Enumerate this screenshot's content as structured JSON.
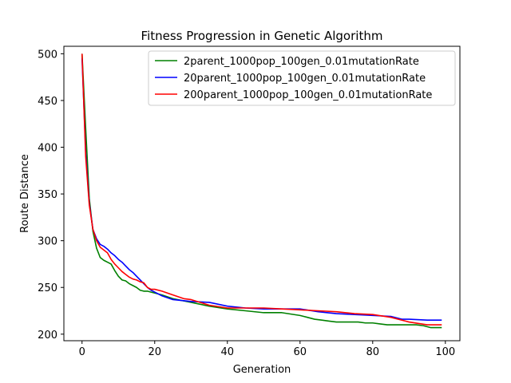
{
  "chart_data": {
    "type": "line",
    "title": "Fitness Progression in Genetic Algorithm",
    "xlabel": "Generation",
    "ylabel": "Route Distance",
    "xlim": [
      -5,
      104
    ],
    "ylim": [
      193,
      508
    ],
    "xticks": [
      0,
      20,
      40,
      60,
      80,
      100
    ],
    "yticks": [
      200,
      250,
      300,
      350,
      400,
      450,
      500
    ],
    "grid": false,
    "legend_position": "top-right",
    "series": [
      {
        "name": "2parent_1000pop_100gen_0.01mutationRate",
        "color": "#008000",
        "x": [
          0,
          1,
          2,
          3,
          4,
          5,
          6,
          7,
          8,
          9,
          10,
          11,
          12,
          13,
          14,
          15,
          16,
          17,
          18,
          19,
          20,
          22,
          25,
          30,
          35,
          40,
          45,
          50,
          55,
          60,
          62,
          64,
          66,
          68,
          70,
          72,
          74,
          76,
          78,
          80,
          82,
          84,
          86,
          88,
          90,
          92,
          94,
          96,
          98,
          99
        ],
        "y": [
          500,
          420,
          345,
          310,
          292,
          282,
          279,
          277,
          275,
          268,
          262,
          258,
          257,
          254,
          252,
          250,
          247,
          246,
          246,
          245,
          244,
          242,
          238,
          234,
          230,
          227,
          225,
          223,
          223,
          220,
          218,
          216,
          215,
          214,
          213,
          213,
          213,
          213,
          212,
          212,
          211,
          210,
          210,
          210,
          210,
          210,
          209,
          207,
          207,
          207
        ]
      },
      {
        "name": "20parent_1000pop_100gen_0.01mutationRate",
        "color": "#0000ff",
        "x": [
          0,
          1,
          2,
          3,
          4,
          5,
          6,
          7,
          8,
          9,
          10,
          11,
          12,
          13,
          14,
          15,
          16,
          17,
          18,
          19,
          20,
          22,
          25,
          30,
          35,
          40,
          45,
          50,
          55,
          60,
          65,
          70,
          75,
          80,
          85,
          88,
          90,
          95,
          99
        ],
        "y": [
          495,
          395,
          340,
          312,
          302,
          296,
          294,
          291,
          287,
          284,
          280,
          277,
          273,
          269,
          266,
          262,
          258,
          254,
          250,
          247,
          245,
          241,
          237,
          235,
          234,
          230,
          228,
          227,
          227,
          227,
          224,
          222,
          221,
          220,
          219,
          216,
          216,
          215,
          215
        ]
      },
      {
        "name": "200parent_1000pop_100gen_0.01mutationRate",
        "color": "#ff0000",
        "x": [
          0,
          1,
          2,
          3,
          4,
          5,
          6,
          7,
          8,
          9,
          10,
          11,
          12,
          13,
          14,
          15,
          16,
          17,
          18,
          19,
          20,
          22,
          25,
          28,
          30,
          35,
          40,
          45,
          50,
          55,
          60,
          65,
          70,
          75,
          80,
          85,
          90,
          95,
          99
        ],
        "y": [
          500,
          390,
          338,
          312,
          300,
          293,
          290,
          287,
          280,
          275,
          271,
          267,
          264,
          261,
          259,
          258,
          256,
          255,
          250,
          248,
          248,
          246,
          242,
          238,
          237,
          231,
          228,
          228,
          228,
          227,
          226,
          225,
          224,
          222,
          221,
          218,
          213,
          210,
          210
        ]
      }
    ]
  }
}
